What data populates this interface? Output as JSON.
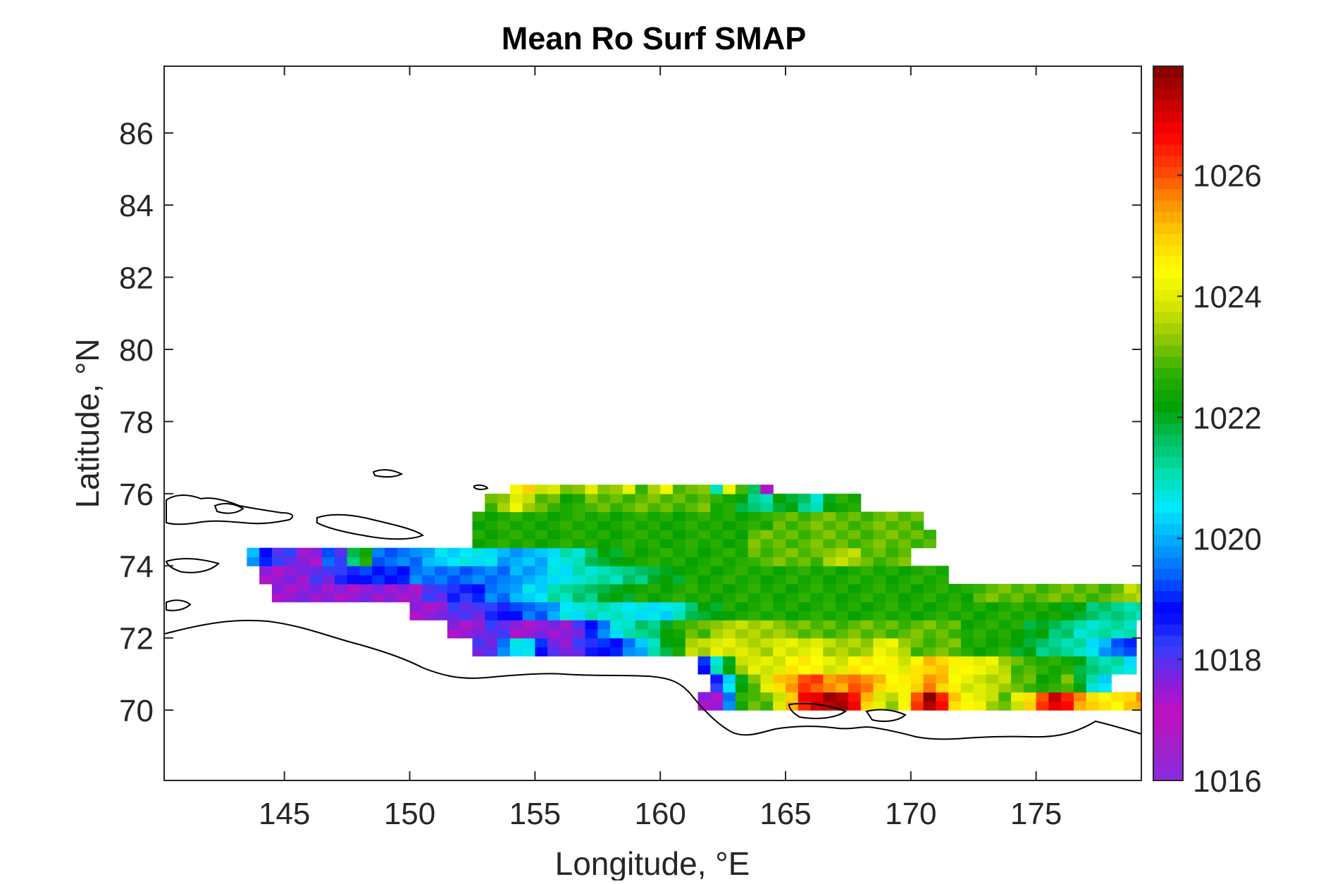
{
  "chart_data": {
    "type": "heatmap",
    "title": "Mean Ro Surf SMAP",
    "xlabel": "Longitude, °E",
    "ylabel": "Latitude, °N",
    "xlim": [
      140.2,
      179.2
    ],
    "ylim": [
      68.05,
      87.85
    ],
    "xticks": [
      145,
      150,
      155,
      160,
      165,
      170,
      175
    ],
    "yticks": [
      70,
      72,
      74,
      76,
      78,
      80,
      82,
      84,
      86
    ],
    "colorbar": {
      "range": [
        1016,
        1027.8
      ],
      "ticks": [
        1016,
        1018,
        1020,
        1022,
        1024,
        1026
      ],
      "colormap": [
        "#8a2be2",
        "#a020c8",
        "#c010c0",
        "#8020e0",
        "#3040ff",
        "#0000ff",
        "#0060ff",
        "#00a8ff",
        "#00e8ff",
        "#00e0b0",
        "#00c060",
        "#00a000",
        "#30b000",
        "#90c800",
        "#d8e800",
        "#ffff00",
        "#ffd000",
        "#ff9000",
        "#ff4000",
        "#ff0000",
        "#c00000",
        "#800000"
      ]
    },
    "grid": false,
    "cell_size_deg": {
      "lon": 0.5,
      "lat": 0.25
    },
    "bands": [
      {
        "lat": [
          70.0,
          70.5
        ],
        "lon": [
          161.5,
          179.2
        ],
        "values": [
          1017.5,
          1017.5,
          1019.5,
          1022.5,
          1023,
          1023,
          1024,
          1025,
          1026.5,
          1027,
          1027.5,
          1027.5,
          1026.5,
          1025,
          1024,
          1023.5,
          1024.5,
          1026,
          1027.5,
          1026.5,
          1025,
          1024.5,
          1024,
          1023.5,
          1023,
          1024,
          1025,
          1026,
          1027,
          1026.5,
          1025.5,
          1025,
          1024.5,
          1024.5,
          1025,
          1025.5
        ]
      },
      {
        "lat": [
          70.5,
          71.0
        ],
        "lon": [
          162.0,
          178.0
        ],
        "values": [
          1018.5,
          1020.5,
          1022,
          1023,
          1024,
          1025,
          1025.5,
          1026,
          1026,
          1025.5,
          1025.5,
          1026,
          1025.5,
          1025,
          1024.5,
          1024.5,
          1025,
          1025.5,
          1025,
          1024.5,
          1024,
          1024,
          1023.5,
          1023.5,
          1023,
          1023,
          1022.5,
          1022.5,
          1023,
          1022,
          1021,
          1020.5
        ]
      },
      {
        "lat": [
          71.0,
          71.5
        ],
        "lon": [
          161.5,
          179.0
        ],
        "values": [
          1019,
          1021,
          1022,
          1023.5,
          1024,
          1024,
          1024,
          1024.5,
          1024.5,
          1024.5,
          1024,
          1024,
          1024.5,
          1024.5,
          1024.5,
          1024.5,
          1024,
          1024.5,
          1025,
          1025,
          1024.5,
          1024.5,
          1024,
          1024,
          1023.5,
          1023,
          1023,
          1022.5,
          1022.5,
          1022.5,
          1022,
          1021.5,
          1021,
          1021,
          1020.5
        ]
      },
      {
        "lat": [
          71.5,
          72.0
        ],
        "lon": [
          152.5,
          179.2
        ],
        "values": [
          1018,
          1018,
          1019.5,
          1020.5,
          1020.5,
          1019,
          1018,
          1017.5,
          1018,
          1018.5,
          1019,
          1019,
          1019.5,
          1020,
          1021,
          1022,
          1022.5,
          1023.5,
          1023.5,
          1024,
          1024,
          1024,
          1023.5,
          1023.5,
          1024,
          1024,
          1024,
          1024,
          1023.5,
          1023.5,
          1023.5,
          1023.5,
          1024,
          1024,
          1023.5,
          1023,
          1023,
          1023,
          1023,
          1022.5,
          1022.5,
          1022.5,
          1022.5,
          1022,
          1022,
          1021.5,
          1021.5,
          1021,
          1021,
          1020.5,
          1020,
          1019.5,
          1019
        ]
      },
      {
        "lat": [
          72.0,
          72.5
        ],
        "lon": [
          151.5,
          179.2
        ],
        "values": [
          1017.5,
          1017.5,
          1017.5,
          1018,
          1018,
          1017.5,
          1017.5,
          1017.5,
          1017.5,
          1017.5,
          1018,
          1019,
          1019.5,
          1020.5,
          1021,
          1021.5,
          1021.5,
          1022,
          1022.5,
          1023,
          1023,
          1023.5,
          1023.5,
          1023.5,
          1023.5,
          1023.5,
          1023.5,
          1023,
          1023,
          1023,
          1023,
          1023,
          1023,
          1023,
          1023,
          1023,
          1023,
          1023,
          1023,
          1023,
          1023,
          1022.5,
          1022.5,
          1022.5,
          1022.5,
          1022.5,
          1022,
          1022,
          1021.5,
          1021.5,
          1021,
          1021,
          1021,
          1021,
          1021
        ]
      },
      {
        "lat": [
          72.5,
          73.0
        ],
        "lon": [
          150.0,
          179.2
        ],
        "values": [
          1017.5,
          1017.5,
          1017.5,
          1018,
          1018,
          1018,
          1018.5,
          1018.5,
          1019,
          1019.5,
          1019.5,
          1020,
          1020.5,
          1020.5,
          1021,
          1021,
          1021,
          1020.5,
          1020.5,
          1020.5,
          1020.5,
          1021,
          1021.5,
          1022,
          1022,
          1022.5,
          1022.5,
          1022.5,
          1022.5,
          1022.5,
          1022.5,
          1022.5,
          1022.5,
          1022.5,
          1022.5,
          1022.5,
          1022.5,
          1022.5,
          1022.5,
          1022.5,
          1022.5,
          1022.5,
          1022.5,
          1022.5,
          1022.5,
          1022.5,
          1022.5,
          1022.5,
          1022.5,
          1022.5,
          1022.5,
          1022.5,
          1022,
          1022,
          1021.5,
          1021.5,
          1021.5,
          1021,
          1021
        ]
      },
      {
        "lat": [
          73.0,
          73.5
        ],
        "lon": [
          144.5,
          179.2
        ],
        "values": [
          1017.5,
          1017.5,
          1017.5,
          1017.5,
          1017.5,
          1017.5,
          1017.5,
          1017.5,
          1017.5,
          1017.5,
          1017.5,
          1017.5,
          1018,
          1018,
          1018.5,
          1018.5,
          1019,
          1019.5,
          1019.5,
          1020,
          1020.5,
          1020.5,
          1021,
          1021,
          1021.5,
          1021.5,
          1022,
          1022,
          1022,
          1022.5,
          1022.5,
          1022.5,
          1022.5,
          1022.5,
          1022.5,
          1022.5,
          1022.5,
          1022.5,
          1022.5,
          1022.5,
          1022.5,
          1022.5,
          1022.5,
          1022.5,
          1022.5,
          1022.5,
          1022.5,
          1022.5,
          1022.5,
          1022.5,
          1022.5,
          1022.5,
          1022.5,
          1022.5,
          1022.5,
          1022.5,
          1023,
          1023,
          1023,
          1023,
          1023,
          1023,
          1023,
          1023,
          1023,
          1023,
          1023,
          1023,
          1023.5,
          1023.5
        ]
      },
      {
        "lat": [
          73.5,
          74.0
        ],
        "lon": [
          144.0,
          171.5
        ],
        "values": [
          1017.5,
          1017.5,
          1017.5,
          1017.5,
          1018,
          1018,
          1018.5,
          1018.5,
          1019,
          1019,
          1019,
          1019,
          1019.5,
          1019.5,
          1019.5,
          1019.5,
          1019.5,
          1019.5,
          1019.5,
          1019.5,
          1020,
          1020,
          1020,
          1020.5,
          1020.5,
          1021,
          1021,
          1021,
          1021,
          1021.5,
          1021.5,
          1022,
          1022,
          1022,
          1022.5,
          1022.5,
          1022.5,
          1022.5,
          1022.5,
          1022.5,
          1022.5,
          1022.5,
          1022.5,
          1022.5,
          1022.5,
          1022.5,
          1022.5,
          1022.5,
          1022.5,
          1022.5,
          1022.5,
          1022.5,
          1022.5,
          1022.5,
          1022.5
        ]
      },
      {
        "lat": [
          74.0,
          74.5
        ],
        "lon": [
          143.5,
          170.0
        ],
        "values": [
          1020,
          1019,
          1018,
          1018,
          1017.5,
          1017.5,
          1019.5,
          1018,
          1021.5,
          1022.5,
          1019.5,
          1019.5,
          1019.5,
          1019.5,
          1020,
          1020.5,
          1020.5,
          1020.5,
          1020.5,
          1020.5,
          1020,
          1020,
          1020,
          1020,
          1020.5,
          1021,
          1021,
          1021.5,
          1022,
          1022,
          1022.5,
          1022.5,
          1022.5,
          1022.5,
          1022.5,
          1022.5,
          1022.5,
          1022.5,
          1022.5,
          1022.5,
          1023,
          1023,
          1023,
          1023,
          1023,
          1023,
          1023.5,
          1023.5,
          1023.5,
          1023,
          1023,
          1023,
          1023
        ]
      },
      {
        "lat": [
          74.5,
          75.0
        ],
        "lon": [
          152.5,
          171.0
        ],
        "values": [
          1022.5,
          1022.5,
          1022.5,
          1022.5,
          1022.5,
          1022.5,
          1022.5,
          1022.5,
          1022.5,
          1022.5,
          1022.5,
          1022.5,
          1022.5,
          1022.5,
          1022.5,
          1022.5,
          1022.5,
          1022.5,
          1022.5,
          1022.5,
          1022.5,
          1022.5,
          1023,
          1023,
          1023,
          1023,
          1023,
          1023,
          1023,
          1023,
          1023,
          1023,
          1023,
          1023,
          1023,
          1023,
          1023
        ]
      },
      {
        "lat": [
          75.0,
          75.5
        ],
        "lon": [
          152.5,
          170.5
        ],
        "values": [
          1022.5,
          1022.5,
          1022.5,
          1022.5,
          1022.5,
          1022.5,
          1022.5,
          1022.5,
          1022.5,
          1022.5,
          1022.5,
          1022.5,
          1022.5,
          1022.5,
          1022.5,
          1022.5,
          1022.5,
          1022.5,
          1022.5,
          1022.5,
          1022.5,
          1022.5,
          1022.5,
          1022.5,
          1023,
          1023,
          1023,
          1023,
          1023,
          1023,
          1023,
          1023,
          1023,
          1023,
          1023,
          1023
        ]
      },
      {
        "lat": [
          75.5,
          76.0
        ],
        "lon": [
          153.0,
          168.0
        ],
        "values": [
          1023,
          1023.5,
          1024,
          1023.5,
          1023,
          1023,
          1022.5,
          1022.5,
          1023,
          1023,
          1023,
          1023,
          1023,
          1023,
          1023,
          1023,
          1023,
          1023,
          1022.5,
          1022.5,
          1022,
          1021.5,
          1021,
          1022,
          1022,
          1021.5,
          1021,
          1022,
          1022.5,
          1022.5
        ]
      },
      {
        "lat": [
          76.0,
          76.25
        ],
        "lon": [
          154.0,
          164.5
        ],
        "values": [
          1024.5,
          1025,
          1023.5,
          1024,
          1023,
          1023.5,
          1024,
          1023,
          1023.5,
          1024,
          1023,
          1023.5,
          1024,
          1023,
          1023,
          1023.5,
          1021,
          1024,
          1023,
          1021.5,
          1017.5
        ]
      }
    ]
  }
}
